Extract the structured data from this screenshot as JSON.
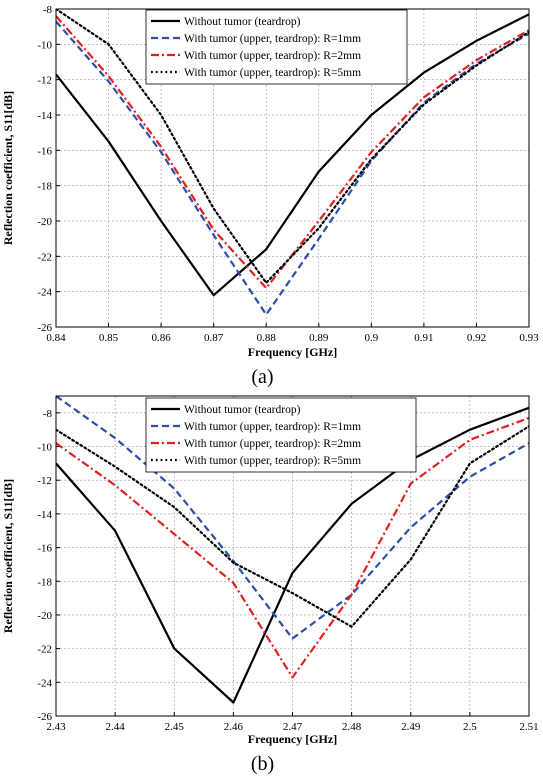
{
  "chart_data": [
    {
      "type": "line",
      "panel_label": "(a)",
      "xlabel": "Frequency [GHz]",
      "ylabel": "Reflection coefficient, S11[dB]",
      "xlim": [
        0.84,
        0.93
      ],
      "ylim": [
        -26,
        -8
      ],
      "xticks": [
        "0.84",
        "0.85",
        "0.86",
        "0.87",
        "0.88",
        "0.89",
        "0.9",
        "0.91",
        "0.92",
        "0.93"
      ],
      "yticks": [
        "-8",
        "-10",
        "-12",
        "-14",
        "-16",
        "-18",
        "-20",
        "-22",
        "-24",
        "-26"
      ],
      "grid": true,
      "legend_position": "top-right",
      "series": [
        {
          "name": "Without tumor (teardrop)",
          "color": "#000000",
          "dash": "solid",
          "x": [
            0.84,
            0.85,
            0.86,
            0.87,
            0.88,
            0.89,
            0.9,
            0.91,
            0.92,
            0.93
          ],
          "y": [
            -11.7,
            -15.5,
            -20.0,
            -24.2,
            -21.6,
            -17.2,
            -14.0,
            -11.6,
            -9.8,
            -8.3
          ]
        },
        {
          "name": "With tumor (upper, teardrop): R=1mm",
          "color": "#2b4fa8",
          "dash": "dashed",
          "x": [
            0.84,
            0.85,
            0.86,
            0.87,
            0.88,
            0.89,
            0.9,
            0.91,
            0.92,
            0.93
          ],
          "y": [
            -8.7,
            -12.1,
            -16.1,
            -20.8,
            -25.3,
            -21.0,
            -16.6,
            -13.3,
            -11.1,
            -9.4
          ]
        },
        {
          "name": "With tumor (upper, teardrop): R=2mm",
          "color": "#e02020",
          "dash": "dashdot",
          "x": [
            0.84,
            0.85,
            0.86,
            0.87,
            0.88,
            0.89,
            0.9,
            0.91,
            0.92,
            0.93
          ],
          "y": [
            -8.4,
            -11.8,
            -15.8,
            -20.5,
            -23.8,
            -20.0,
            -16.1,
            -13.0,
            -10.9,
            -9.2
          ]
        },
        {
          "name": "With tumor (upper, teardrop): R=5mm",
          "color": "#000000",
          "dash": "dotted",
          "x": [
            0.84,
            0.85,
            0.86,
            0.87,
            0.88,
            0.89,
            0.9,
            0.91,
            0.92,
            0.93
          ],
          "y": [
            -8.0,
            -10.0,
            -14.0,
            -19.3,
            -23.5,
            -20.4,
            -16.5,
            -13.4,
            -11.2,
            -9.3
          ]
        }
      ]
    },
    {
      "type": "line",
      "panel_label": "(b)",
      "xlabel": "Frequency [GHz]",
      "ylabel": "Reflection coefficient, S11[dB]",
      "xlim": [
        2.43,
        2.51
      ],
      "ylim": [
        -26,
        -7
      ],
      "xticks": [
        "2.43",
        "2.44",
        "2.45",
        "2.46",
        "2.47",
        "2.48",
        "2.49",
        "2.5",
        "2.51"
      ],
      "yticks": [
        "-8",
        "-10",
        "-12",
        "-14",
        "-16",
        "-18",
        "-20",
        "-22",
        "-24",
        "-26"
      ],
      "grid": true,
      "legend_position": "top-right",
      "series": [
        {
          "name": "Without tumor (teardrop)",
          "color": "#000000",
          "dash": "solid",
          "x": [
            2.43,
            2.44,
            2.45,
            2.46,
            2.47,
            2.48,
            2.49,
            2.5,
            2.51
          ],
          "y": [
            -11.0,
            -15.0,
            -22.0,
            -25.2,
            -17.5,
            -13.4,
            -10.8,
            -9.0,
            -7.7
          ]
        },
        {
          "name": "With tumor (upper, teardrop): R=1mm",
          "color": "#2b4fa8",
          "dash": "dashed",
          "x": [
            2.43,
            2.44,
            2.45,
            2.46,
            2.47,
            2.48,
            2.49,
            2.5,
            2.51
          ],
          "y": [
            -7.0,
            -9.5,
            -12.5,
            -16.8,
            -21.4,
            -18.8,
            -14.8,
            -11.8,
            -9.8
          ]
        },
        {
          "name": "With tumor (upper, teardrop): R=2mm",
          "color": "#e02020",
          "dash": "dashdot",
          "x": [
            2.43,
            2.44,
            2.45,
            2.46,
            2.47,
            2.48,
            2.49,
            2.5,
            2.51
          ],
          "y": [
            -9.8,
            -12.3,
            -15.2,
            -18.1,
            -23.7,
            -18.8,
            -12.2,
            -9.6,
            -8.3
          ]
        },
        {
          "name": "With tumor (upper, teardrop): R=5mm",
          "color": "#000000",
          "dash": "dotted",
          "x": [
            2.43,
            2.44,
            2.45,
            2.46,
            2.47,
            2.48,
            2.49,
            2.5,
            2.51
          ],
          "y": [
            -9.0,
            -11.2,
            -13.6,
            -16.9,
            -18.7,
            -20.7,
            -16.7,
            -11.0,
            -8.8
          ]
        }
      ]
    }
  ]
}
